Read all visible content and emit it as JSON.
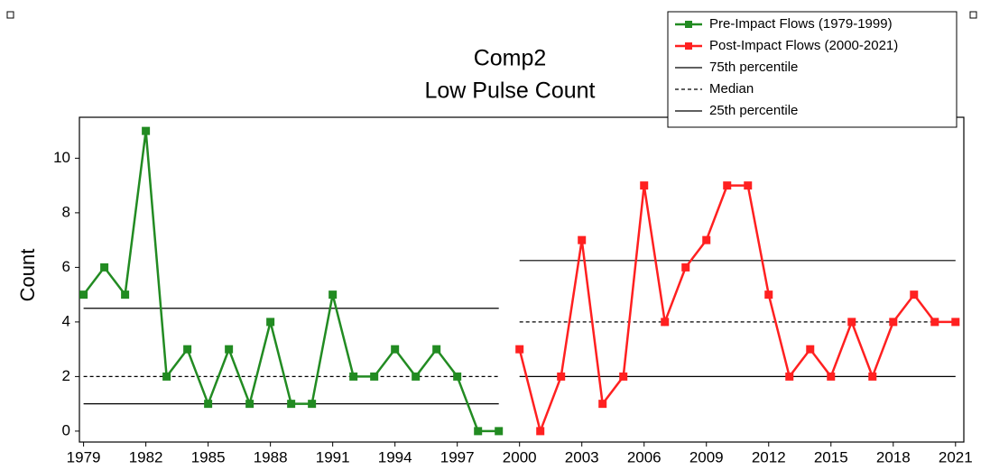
{
  "chart_data": {
    "type": "line",
    "title": [
      "Comp2",
      "Low Pulse Count"
    ],
    "y_label": "Count",
    "series": [
      {
        "name": "Pre-Impact Flows (1979-1999)",
        "color": "#228b22",
        "x": [
          1979,
          1980,
          1981,
          1982,
          1983,
          1984,
          1985,
          1986,
          1987,
          1988,
          1989,
          1990,
          1991,
          1992,
          1993,
          1994,
          1995,
          1996,
          1997,
          1998,
          1999
        ],
        "values": [
          5,
          6,
          5,
          11,
          2,
          3,
          1,
          3,
          1,
          4,
          1,
          1,
          5,
          2,
          2,
          3,
          2,
          3,
          2,
          0,
          0
        ]
      },
      {
        "name": "Post-Impact Flows (2000-2021)",
        "color": "#ff2020",
        "x": [
          2000,
          2001,
          2002,
          2003,
          2004,
          2005,
          2006,
          2007,
          2008,
          2009,
          2010,
          2011,
          2012,
          2013,
          2014,
          2015,
          2016,
          2017,
          2018,
          2019,
          2020,
          2021
        ],
        "values": [
          3,
          0,
          2,
          7,
          1,
          2,
          9,
          4,
          6,
          7,
          9,
          9,
          5,
          2,
          3,
          2,
          4,
          2,
          4,
          5,
          4,
          4
        ]
      }
    ],
    "reference_lines": [
      {
        "name": "75th percentile",
        "dash": false,
        "values": [
          4.5,
          6.25
        ]
      },
      {
        "name": "Median",
        "dash": true,
        "values": [
          2,
          4
        ]
      },
      {
        "name": "25th percentile",
        "dash": false,
        "values": [
          1,
          2
        ]
      }
    ],
    "xlim": [
      1978.8,
      2021.4
    ],
    "xticks": [
      1979,
      1982,
      1985,
      1988,
      1991,
      1994,
      1997,
      2000,
      2003,
      2006,
      2009,
      2012,
      2015,
      2018,
      2021
    ],
    "ylim": [
      -0.4,
      11.5
    ],
    "yticks": [
      0,
      2,
      4,
      6,
      8,
      10
    ],
    "legend": "top-right"
  }
}
